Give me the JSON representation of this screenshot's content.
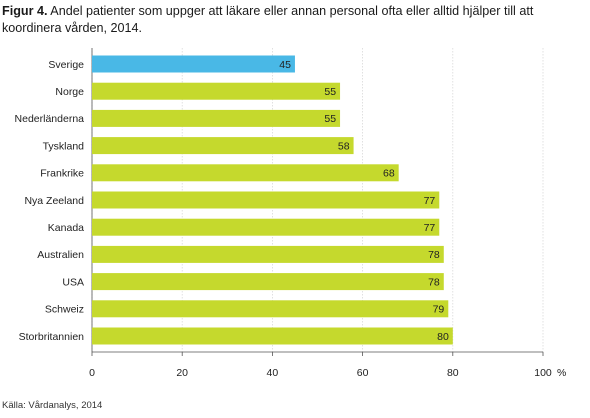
{
  "figure": {
    "label": "Figur 4.",
    "title": "Andel patienter som uppger att läkare eller annan personal ofta eller alltid hjälper till att koordinera vården, 2014.",
    "source": "Källa: Vårdanalys, 2014"
  },
  "chart_data": {
    "type": "bar",
    "orientation": "horizontal",
    "categories": [
      "Sverige",
      "Norge",
      "Nederländerna",
      "Tyskland",
      "Frankrike",
      "Nya Zeeland",
      "Kanada",
      "Australien",
      "USA",
      "Schweiz",
      "Storbritannien"
    ],
    "values": [
      45,
      55,
      55,
      58,
      68,
      77,
      77,
      78,
      78,
      79,
      80
    ],
    "highlight_index": 0,
    "highlight_color": "#49b8e6",
    "bar_color": "#c5d92d",
    "xlim": [
      0,
      100
    ],
    "xticks": [
      0,
      20,
      40,
      60,
      80,
      100
    ],
    "xunit": "%",
    "grid": "vertical"
  }
}
